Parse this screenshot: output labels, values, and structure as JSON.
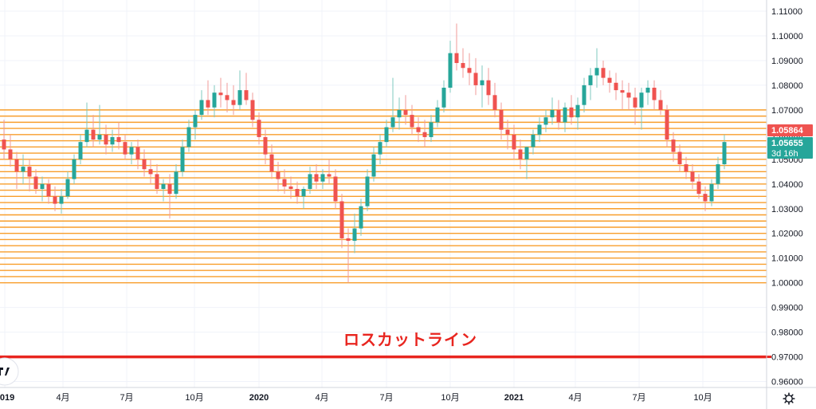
{
  "chart_data": {
    "type": "candlestick",
    "title": "",
    "ylim": [
      0.955,
      1.115
    ],
    "y_ticks": [
      "1.11000",
      "1.10000",
      "1.09000",
      "1.08000",
      "1.07000",
      "1.06000",
      "1.05000",
      "1.04000",
      "1.03000",
      "1.02000",
      "1.01000",
      "1.00000",
      "0.99000",
      "0.98000",
      "0.97000",
      "0.96000"
    ],
    "x_ticks": [
      {
        "label": "2019",
        "bold": true
      },
      {
        "label": "4月",
        "bold": false
      },
      {
        "label": "7月",
        "bold": false
      },
      {
        "label": "10月",
        "bold": false
      },
      {
        "label": "2020",
        "bold": true
      },
      {
        "label": "4月",
        "bold": false
      },
      {
        "label": "7月",
        "bold": false
      },
      {
        "label": "10月",
        "bold": false
      },
      {
        "label": "2021",
        "bold": true
      },
      {
        "label": "4月",
        "bold": false
      },
      {
        "label": "7月",
        "bold": false
      },
      {
        "label": "10月",
        "bold": false
      }
    ],
    "grid": true,
    "colors": {
      "up": "#26a69a",
      "down": "#ef5350",
      "grid_line": "#f89e2b",
      "loss_cut": "#e8251f"
    },
    "orders_grid": {
      "from": 1.0,
      "to": 1.07,
      "step": 0.0025
    },
    "loss_cut": {
      "level": 0.97,
      "label": "ロスカットライン"
    },
    "price_badges": [
      {
        "value": "1.05864",
        "color": "#ef5350"
      },
      {
        "value": "1.05655",
        "color": "#26a69a"
      }
    ],
    "countdown": "3d 16h",
    "weekly_ohlc": [
      [
        1.058,
        1.066,
        1.05,
        1.054
      ],
      [
        1.054,
        1.06,
        1.047,
        1.05
      ],
      [
        1.05,
        1.053,
        1.038,
        1.045
      ],
      [
        1.045,
        1.052,
        1.04,
        1.047
      ],
      [
        1.047,
        1.05,
        1.037,
        1.043
      ],
      [
        1.043,
        1.046,
        1.036,
        1.038
      ],
      [
        1.038,
        1.043,
        1.033,
        1.04
      ],
      [
        1.04,
        1.042,
        1.032,
        1.035
      ],
      [
        1.035,
        1.039,
        1.029,
        1.032
      ],
      [
        1.032,
        1.038,
        1.028,
        1.035
      ],
      [
        1.035,
        1.045,
        1.034,
        1.042
      ],
      [
        1.042,
        1.052,
        1.04,
        1.05
      ],
      [
        1.05,
        1.06,
        1.048,
        1.057
      ],
      [
        1.057,
        1.073,
        1.055,
        1.062
      ],
      [
        1.062,
        1.068,
        1.055,
        1.058
      ],
      [
        1.058,
        1.072,
        1.056,
        1.06
      ],
      [
        1.06,
        1.064,
        1.052,
        1.056
      ],
      [
        1.056,
        1.062,
        1.053,
        1.059
      ],
      [
        1.059,
        1.065,
        1.054,
        1.057
      ],
      [
        1.057,
        1.06,
        1.05,
        1.052
      ],
      [
        1.052,
        1.057,
        1.048,
        1.055
      ],
      [
        1.055,
        1.058,
        1.046,
        1.05
      ],
      [
        1.05,
        1.054,
        1.043,
        1.046
      ],
      [
        1.046,
        1.05,
        1.04,
        1.044
      ],
      [
        1.044,
        1.048,
        1.036,
        1.038
      ],
      [
        1.038,
        1.042,
        1.033,
        1.04
      ],
      [
        1.04,
        1.044,
        1.026,
        1.036
      ],
      [
        1.036,
        1.048,
        1.034,
        1.045
      ],
      [
        1.045,
        1.058,
        1.043,
        1.055
      ],
      [
        1.055,
        1.066,
        1.053,
        1.063
      ],
      [
        1.063,
        1.07,
        1.058,
        1.068
      ],
      [
        1.068,
        1.078,
        1.066,
        1.074
      ],
      [
        1.074,
        1.082,
        1.068,
        1.071
      ],
      [
        1.071,
        1.08,
        1.067,
        1.077
      ],
      [
        1.077,
        1.083,
        1.071,
        1.076
      ],
      [
        1.076,
        1.081,
        1.069,
        1.074
      ],
      [
        1.074,
        1.08,
        1.068,
        1.072
      ],
      [
        1.072,
        1.086,
        1.07,
        1.078
      ],
      [
        1.078,
        1.085,
        1.072,
        1.074
      ],
      [
        1.074,
        1.077,
        1.063,
        1.066
      ],
      [
        1.066,
        1.069,
        1.056,
        1.059
      ],
      [
        1.059,
        1.062,
        1.048,
        1.052
      ],
      [
        1.052,
        1.056,
        1.042,
        1.045
      ],
      [
        1.045,
        1.049,
        1.037,
        1.042
      ],
      [
        1.042,
        1.046,
        1.036,
        1.039
      ],
      [
        1.039,
        1.043,
        1.034,
        1.038
      ],
      [
        1.038,
        1.041,
        1.032,
        1.035
      ],
      [
        1.035,
        1.039,
        1.03,
        1.038
      ],
      [
        1.038,
        1.047,
        1.036,
        1.044
      ],
      [
        1.044,
        1.048,
        1.038,
        1.041
      ],
      [
        1.041,
        1.046,
        1.038,
        1.044
      ],
      [
        1.044,
        1.05,
        1.04,
        1.043
      ],
      [
        1.043,
        1.046,
        1.03,
        1.033
      ],
      [
        1.033,
        1.036,
        1.014,
        1.018
      ],
      [
        1.018,
        1.022,
        1.0,
        1.017
      ],
      [
        1.017,
        1.028,
        1.012,
        1.022
      ],
      [
        1.022,
        1.034,
        1.019,
        1.031
      ],
      [
        1.031,
        1.046,
        1.029,
        1.043
      ],
      [
        1.043,
        1.055,
        1.041,
        1.052
      ],
      [
        1.052,
        1.06,
        1.048,
        1.057
      ],
      [
        1.057,
        1.066,
        1.055,
        1.063
      ],
      [
        1.063,
        1.083,
        1.061,
        1.067
      ],
      [
        1.067,
        1.075,
        1.062,
        1.07
      ],
      [
        1.07,
        1.076,
        1.064,
        1.068
      ],
      [
        1.068,
        1.072,
        1.06,
        1.063
      ],
      [
        1.063,
        1.067,
        1.057,
        1.061
      ],
      [
        1.061,
        1.066,
        1.055,
        1.059
      ],
      [
        1.059,
        1.068,
        1.057,
        1.065
      ],
      [
        1.065,
        1.074,
        1.063,
        1.071
      ],
      [
        1.071,
        1.082,
        1.069,
        1.079
      ],
      [
        1.079,
        1.098,
        1.077,
        1.093
      ],
      [
        1.093,
        1.105,
        1.086,
        1.089
      ],
      [
        1.089,
        1.095,
        1.083,
        1.087
      ],
      [
        1.087,
        1.093,
        1.08,
        1.085
      ],
      [
        1.085,
        1.091,
        1.076,
        1.08
      ],
      [
        1.08,
        1.088,
        1.071,
        1.082
      ],
      [
        1.082,
        1.087,
        1.072,
        1.076
      ],
      [
        1.076,
        1.081,
        1.067,
        1.07
      ],
      [
        1.07,
        1.073,
        1.058,
        1.062
      ],
      [
        1.062,
        1.066,
        1.054,
        1.06
      ],
      [
        1.06,
        1.064,
        1.05,
        1.054
      ],
      [
        1.054,
        1.058,
        1.046,
        1.05
      ],
      [
        1.05,
        1.054,
        1.042,
        1.055
      ],
      [
        1.055,
        1.062,
        1.052,
        1.06
      ],
      [
        1.06,
        1.067,
        1.057,
        1.064
      ],
      [
        1.064,
        1.07,
        1.061,
        1.067
      ],
      [
        1.067,
        1.075,
        1.064,
        1.07
      ],
      [
        1.07,
        1.074,
        1.062,
        1.065
      ],
      [
        1.065,
        1.073,
        1.061,
        1.071
      ],
      [
        1.071,
        1.076,
        1.064,
        1.067
      ],
      [
        1.067,
        1.075,
        1.062,
        1.072
      ],
      [
        1.072,
        1.083,
        1.069,
        1.08
      ],
      [
        1.08,
        1.087,
        1.074,
        1.084
      ],
      [
        1.084,
        1.095,
        1.079,
        1.087
      ],
      [
        1.087,
        1.09,
        1.08,
        1.083
      ],
      [
        1.083,
        1.086,
        1.077,
        1.081
      ],
      [
        1.081,
        1.085,
        1.074,
        1.078
      ],
      [
        1.078,
        1.082,
        1.07,
        1.077
      ],
      [
        1.077,
        1.081,
        1.07,
        1.075
      ],
      [
        1.075,
        1.079,
        1.064,
        1.071
      ],
      [
        1.071,
        1.079,
        1.062,
        1.077
      ],
      [
        1.077,
        1.082,
        1.072,
        1.079
      ],
      [
        1.079,
        1.082,
        1.07,
        1.074
      ],
      [
        1.074,
        1.078,
        1.068,
        1.07
      ],
      [
        1.07,
        1.072,
        1.055,
        1.058
      ],
      [
        1.058,
        1.061,
        1.049,
        1.053
      ],
      [
        1.053,
        1.056,
        1.045,
        1.048
      ],
      [
        1.048,
        1.051,
        1.042,
        1.045
      ],
      [
        1.045,
        1.048,
        1.038,
        1.041
      ],
      [
        1.041,
        1.044,
        1.034,
        1.036
      ],
      [
        1.036,
        1.039,
        1.029,
        1.033
      ],
      [
        1.033,
        1.042,
        1.031,
        1.04
      ],
      [
        1.04,
        1.051,
        1.038,
        1.048
      ],
      [
        1.048,
        1.06,
        1.046,
        1.057
      ]
    ]
  }
}
